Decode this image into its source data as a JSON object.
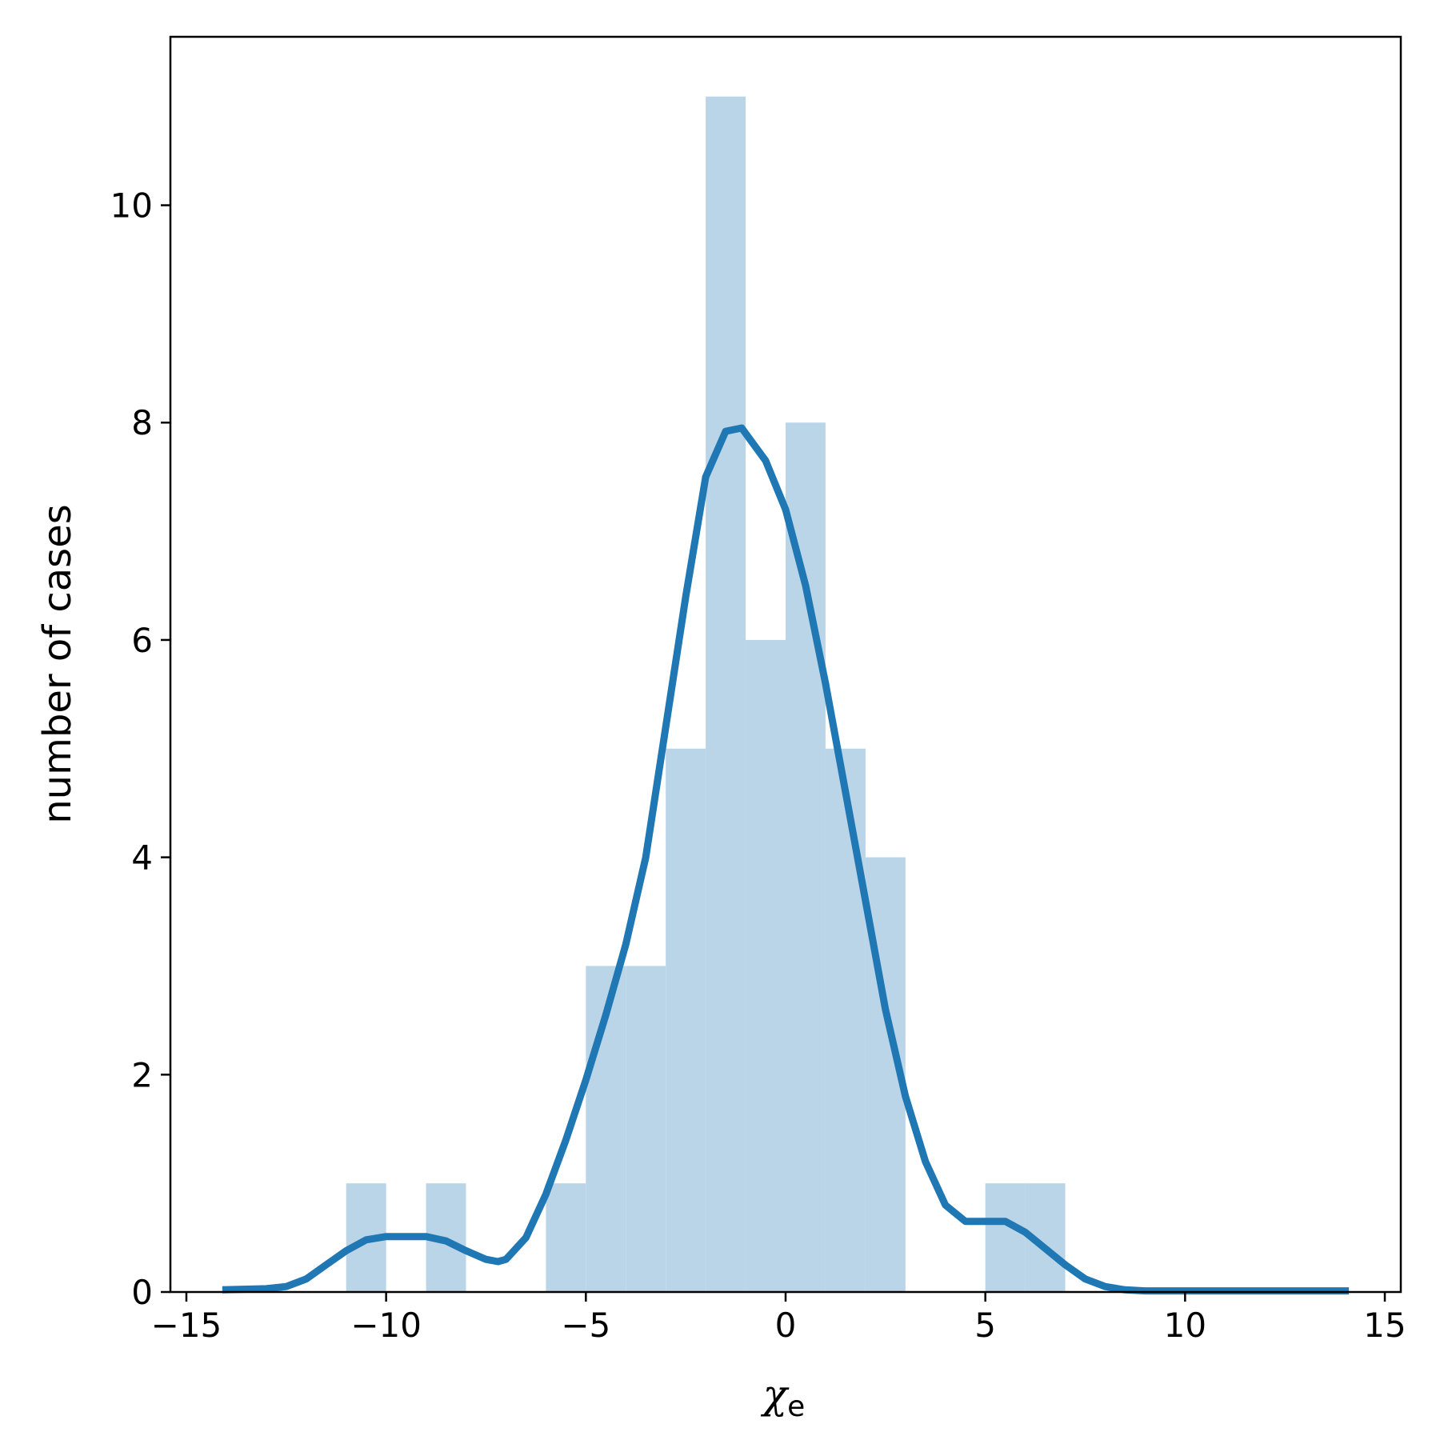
{
  "chart_data": {
    "type": "bar",
    "title": "",
    "xlabel_main": "χ",
    "xlabel_sub": "e",
    "ylabel": "number of cases",
    "xlim": [
      -15.4,
      15.4
    ],
    "ylim": [
      0,
      11.55
    ],
    "grid": false,
    "xticks": [
      -15,
      -10,
      -5,
      0,
      5,
      10,
      15
    ],
    "xtick_labels": [
      "−15",
      "−10",
      "−5",
      "0",
      "5",
      "10",
      "15"
    ],
    "yticks": [
      0,
      2,
      4,
      6,
      8,
      10
    ],
    "ytick_labels": [
      "0",
      "2",
      "4",
      "6",
      "8",
      "10"
    ],
    "histogram": {
      "bin_edges": [
        -11,
        -10,
        -9,
        -8,
        -7,
        -6,
        -5,
        -4,
        -3,
        -2,
        -1,
        0,
        1,
        2,
        3,
        4,
        5,
        6,
        7
      ],
      "counts": [
        1,
        0,
        1,
        0,
        0,
        1,
        3,
        3,
        5,
        11,
        6,
        8,
        5,
        4,
        0,
        0,
        1,
        1
      ],
      "color": "#bbd5e8"
    },
    "kde": {
      "color": "#1f77b4",
      "x": [
        -14.1,
        -13,
        -12.5,
        -12,
        -11.5,
        -11,
        -10.5,
        -10,
        -9.5,
        -9,
        -8.5,
        -8,
        -7.5,
        -7.2,
        -7,
        -6.5,
        -6,
        -5.5,
        -5,
        -4.5,
        -4,
        -3.5,
        -3,
        -2.5,
        -2,
        -1.5,
        -1.1,
        -0.5,
        0,
        0.5,
        1,
        1.5,
        2,
        2.5,
        3,
        3.5,
        4,
        4.5,
        5,
        5.5,
        6,
        6.5,
        7,
        7.5,
        8,
        8.5,
        9,
        10,
        12,
        14.1
      ],
      "y": [
        0.02,
        0.03,
        0.05,
        0.12,
        0.25,
        0.38,
        0.48,
        0.51,
        0.51,
        0.51,
        0.47,
        0.38,
        0.3,
        0.28,
        0.3,
        0.5,
        0.9,
        1.4,
        1.95,
        2.55,
        3.2,
        4.0,
        5.2,
        6.4,
        7.5,
        7.92,
        7.95,
        7.65,
        7.2,
        6.5,
        5.6,
        4.6,
        3.6,
        2.6,
        1.8,
        1.2,
        0.8,
        0.65,
        0.65,
        0.65,
        0.55,
        0.4,
        0.25,
        0.12,
        0.05,
        0.02,
        0.01,
        0.01,
        0.01,
        0.01
      ]
    }
  }
}
